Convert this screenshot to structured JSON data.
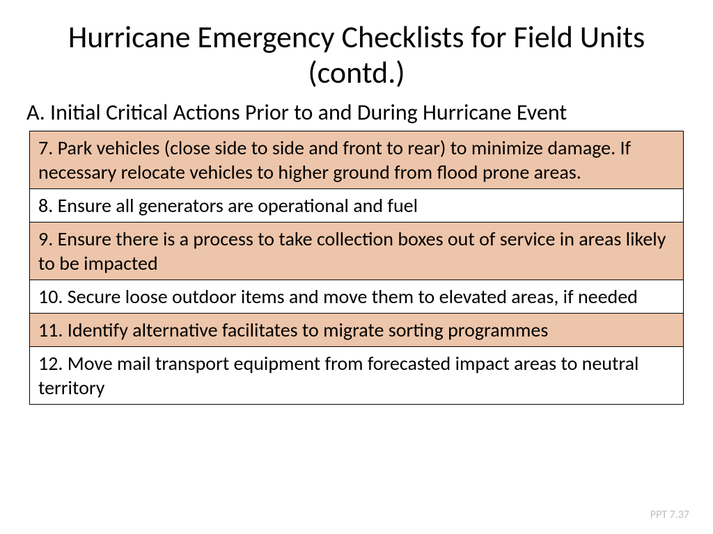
{
  "title": "Hurricane Emergency Checklists for Field Units (contd.)",
  "subtitle": "A. Initial Critical Actions Prior to and During Hurricane Event",
  "rows": [
    {
      "text": "7.  Park vehicles (close side to side and front to rear) to minimize damage.  If necessary relocate vehicles to higher ground from flood prone areas.",
      "bg": "#edc5aa"
    },
    {
      "text": "8.  Ensure all generators are operational and fuel",
      "bg": "#ffffff"
    },
    {
      "text": "9.  Ensure there is a process to take collection boxes out of service in areas likely to be impacted",
      "bg": "#edc5aa"
    },
    {
      "text": "10.  Secure loose outdoor items and move them to elevated areas, if needed",
      "bg": "#ffffff"
    },
    {
      "text": "11.  Identify alternative facilitates to migrate sorting programmes",
      "bg": "#edc5aa"
    },
    {
      "text": "12. Move mail transport equipment from forecasted impact areas to neutral territory",
      "bg": "#ffffff"
    }
  ],
  "footer": "PPT 7.37",
  "style": {
    "title_fontsize": 44,
    "subtitle_fontsize": 32,
    "row_fontsize": 28,
    "footer_fontsize": 16,
    "footer_color": "#bfbfbf",
    "border_color": "#000000",
    "odd_row_color": "#edc5aa",
    "even_row_color": "#ffffff",
    "background_color": "#ffffff"
  }
}
